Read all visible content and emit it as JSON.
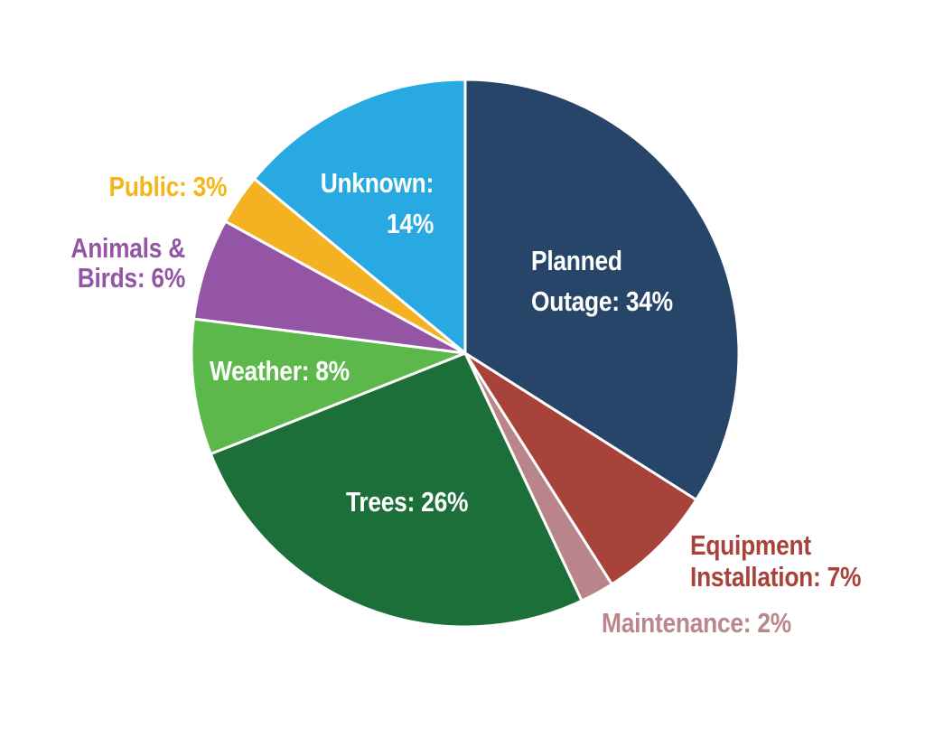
{
  "chart_data": {
    "type": "pie",
    "start_angle_deg": 0,
    "direction": "clockwise",
    "stroke_color": "#ffffff",
    "background_color": "#ffffff",
    "slices": [
      {
        "name": "Planned Outage",
        "value": 34,
        "color": "#274569",
        "label_lines": [
          "Planned",
          "Outage: 34%"
        ],
        "label_color": "#ffffff",
        "label_position": "inside"
      },
      {
        "name": "Equipment Installation",
        "value": 7,
        "color": "#a8433c",
        "label_lines": [
          "Equipment",
          "Installation: 7%"
        ],
        "label_color": "#a8433c",
        "label_position": "outside"
      },
      {
        "name": "Maintenance",
        "value": 2,
        "color": "#b9858a",
        "label_lines": [
          "Maintenance: 2%"
        ],
        "label_color": "#bb868c",
        "label_position": "outside"
      },
      {
        "name": "Trees",
        "value": 26,
        "color": "#1d6f39",
        "label_lines": [
          "Trees: 26%"
        ],
        "label_color": "#ffffff",
        "label_position": "inside"
      },
      {
        "name": "Weather",
        "value": 8,
        "color": "#5cb84a",
        "label_lines": [
          "Weather: 8%"
        ],
        "label_color": "#ffffff",
        "label_position": "inside"
      },
      {
        "name": "Animals & Birds",
        "value": 6,
        "color": "#9455a4",
        "label_lines": [
          "Animals &",
          "Birds: 6%"
        ],
        "label_color": "#9455a5",
        "label_position": "outside"
      },
      {
        "name": "Public",
        "value": 3,
        "color": "#f4b223",
        "label_lines": [
          "Public: 3%"
        ],
        "label_color": "#f5b51e",
        "label_position": "outside"
      },
      {
        "name": "Unknown",
        "value": 14,
        "color": "#29a9e1",
        "label_lines": [
          "Unknown:",
          "14%"
        ],
        "label_color": "#ffffff",
        "label_position": "inside"
      }
    ]
  }
}
